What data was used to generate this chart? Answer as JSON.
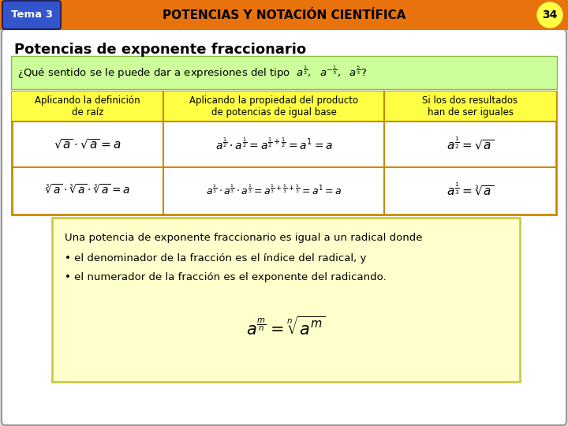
{
  "title_bar_color": "#E8720C",
  "title_text": "POTENCIAS Y NOTACIÓN CIENTÍFICA",
  "tema_label": "Tema 3",
  "tema_bg": "#3355CC",
  "page_num": "34",
  "page_num_bg": "#FFFF44",
  "main_bg": "#DDDDDD",
  "section_title": "Potencias de exponente fraccionario",
  "green_box_bg": "#CCFF99",
  "question_text": "¿Qué sentido se le puede dar a expresiones del tipo",
  "table_header_bg": "#FFFF44",
  "table_border": "#CC8800",
  "col1_header": "Aplicando la definición\nde raíz",
  "col2_header": "Aplicando la propiedad del producto\nde potencias de igual base",
  "col3_header": "Si los dos resultados\nhan de ser iguales",
  "yellow_box_bg": "#FFFFCC",
  "yellow_box_border": "#CCCC44",
  "summary_line1": "Una potencia de exponente fraccionario es igual a un radical donde",
  "summary_line2": "• el denominador de la fracción es el índice del radical, y",
  "summary_line3": "• el numerador de la fracción es el exponente del radicando."
}
